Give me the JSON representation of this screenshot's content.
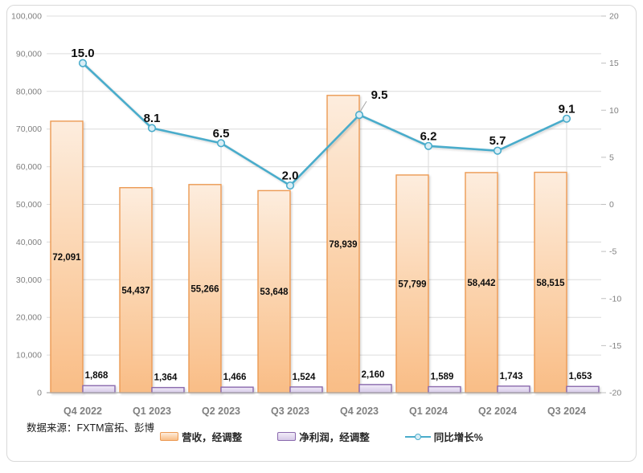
{
  "source_note": "数据来源：FXTM富拓、彭博",
  "colors": {
    "revenue_fill_top": "#FDEDDE",
    "revenue_fill_bottom": "#F9BD86",
    "revenue_border": "#EC9A53",
    "profit_fill_top": "#F1ECF8",
    "profit_fill_bottom": "#D6C9E8",
    "profit_border": "#8A69AD",
    "growth_line": "#4AACCB",
    "marker_fill": "#D9EEF6",
    "gridline": "#DCDCDC",
    "drop_line": "#D9D9D9",
    "axis_line": "#ABABAB",
    "axis_text": "#7F7F7F",
    "label_text": "#0D0D0D"
  },
  "chart_data": {
    "type": "combo-bar-line",
    "title": "",
    "categories": [
      "Q4 2022",
      "Q1 2023",
      "Q2 2023",
      "Q3 2023",
      "Q4 2023",
      "Q1 2024",
      "Q2 2024",
      "Q3 2024"
    ],
    "series": [
      {
        "name": "营收，经调整",
        "type": "bar",
        "axis": "left",
        "values": [
          72091,
          54437,
          55266,
          53648,
          78939,
          57799,
          58442,
          58515
        ],
        "labels": [
          "72,091",
          "54,437",
          "55,266",
          "53,648",
          "78,939",
          "57,799",
          "58,442",
          "58,515"
        ]
      },
      {
        "name": "净利润，经调整",
        "type": "bar",
        "axis": "left",
        "values": [
          1868,
          1364,
          1466,
          1524,
          2160,
          1589,
          1743,
          1653
        ],
        "labels": [
          "1,868",
          "1,364",
          "1,466",
          "1,524",
          "2,160",
          "1,589",
          "1,743",
          "1,653"
        ]
      },
      {
        "name": "同比增长%",
        "type": "line",
        "axis": "right",
        "values": [
          15.0,
          8.1,
          6.5,
          2.0,
          9.5,
          6.2,
          5.7,
          9.1
        ],
        "labels": [
          "15.0",
          "8.1",
          "6.5",
          "2.0",
          "9.5",
          "6.2",
          "5.7",
          "9.1"
        ]
      }
    ],
    "left_axis": {
      "min": 0,
      "max": 100000,
      "step": 10000,
      "ticks": [
        "0",
        "10,000",
        "20,000",
        "30,000",
        "40,000",
        "50,000",
        "60,000",
        "70,000",
        "80,000",
        "90,000",
        "100,000"
      ]
    },
    "right_axis": {
      "min": -20,
      "max": 20,
      "step": 5,
      "ticks": [
        "-20",
        "-15",
        "-10",
        "-5",
        "0",
        "5",
        "10",
        "15",
        "20"
      ]
    },
    "grid": true,
    "drop_lines": true,
    "legend_position": "bottom"
  }
}
